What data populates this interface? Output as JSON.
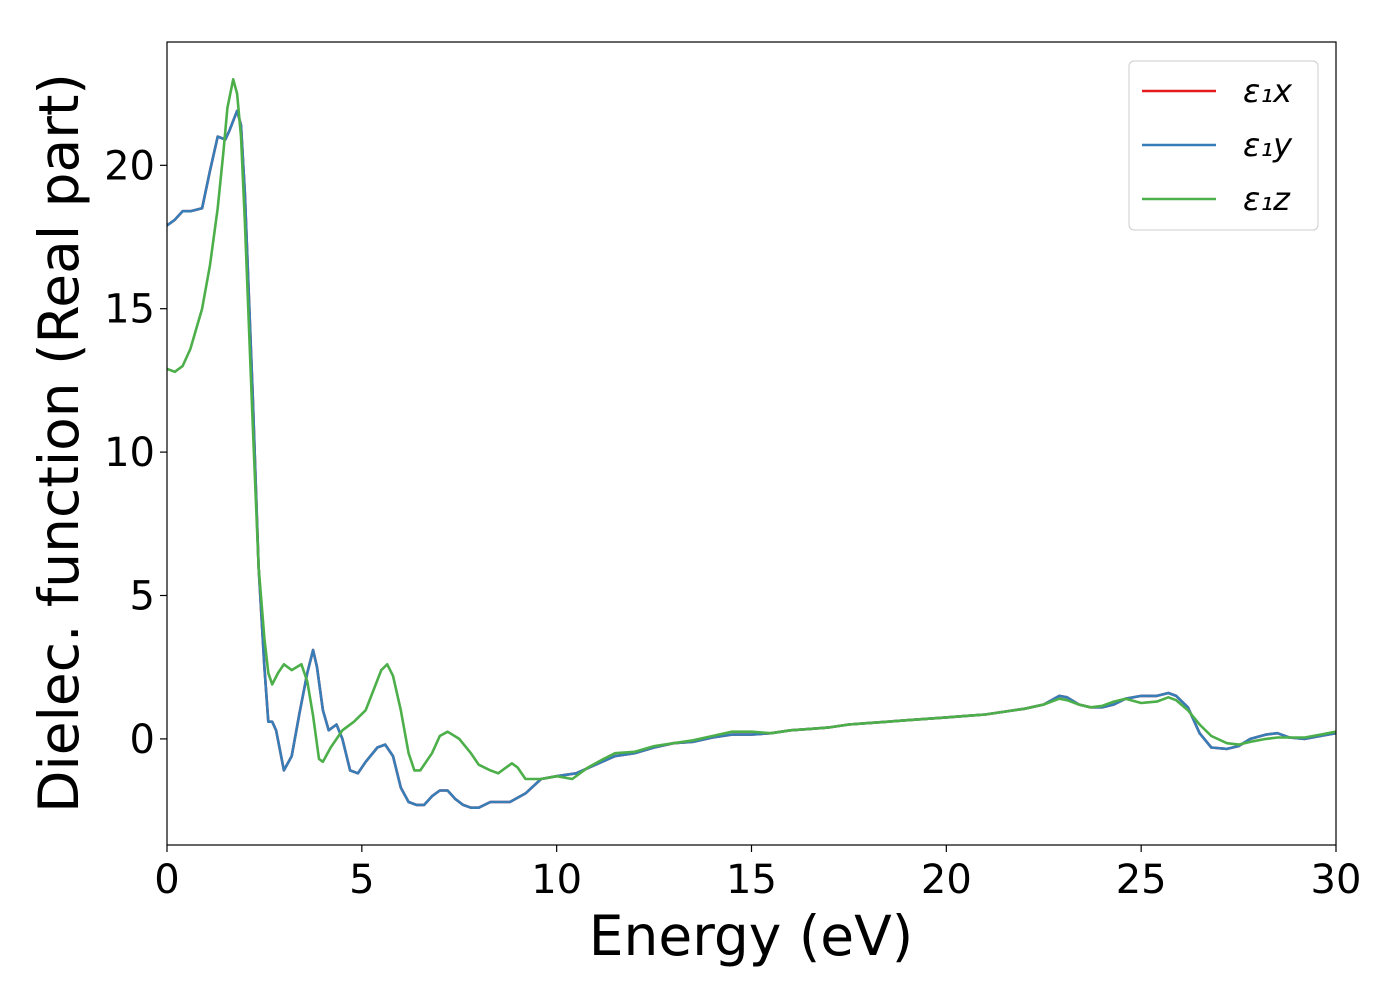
{
  "chart_data": {
    "type": "line",
    "xlabel": "Energy (eV)",
    "ylabel": "Dielec. function (Real part)",
    "xlim": [
      0,
      30
    ],
    "ylim": [
      -3.7,
      24.3
    ],
    "xticks": [
      0,
      5,
      10,
      15,
      20,
      25,
      30
    ],
    "yticks": [
      0,
      5,
      10,
      15,
      20
    ],
    "grid": false,
    "legend_position": "top-right",
    "series": [
      {
        "name": "ε₁x",
        "color": "#e41a1c",
        "points": [
          [
            0,
            17.9
          ],
          [
            0.2,
            18.1
          ],
          [
            0.4,
            18.4
          ],
          [
            0.6,
            18.4
          ],
          [
            0.9,
            18.5
          ],
          [
            1.1,
            19.8
          ],
          [
            1.3,
            21.0
          ],
          [
            1.5,
            20.9
          ],
          [
            1.6,
            21.2
          ],
          [
            1.8,
            21.9
          ],
          [
            1.9,
            21.4
          ],
          [
            2.0,
            19.0
          ],
          [
            2.2,
            12.0
          ],
          [
            2.35,
            6.0
          ],
          [
            2.5,
            2.5
          ],
          [
            2.6,
            0.6
          ],
          [
            2.7,
            0.6
          ],
          [
            2.8,
            0.3
          ],
          [
            3.0,
            -1.1
          ],
          [
            3.2,
            -0.6
          ],
          [
            3.4,
            0.9
          ],
          [
            3.6,
            2.3
          ],
          [
            3.75,
            3.1
          ],
          [
            3.85,
            2.5
          ],
          [
            4.0,
            1.0
          ],
          [
            4.15,
            0.3
          ],
          [
            4.35,
            0.5
          ],
          [
            4.5,
            0.0
          ],
          [
            4.7,
            -1.1
          ],
          [
            4.9,
            -1.2
          ],
          [
            5.1,
            -0.8
          ],
          [
            5.4,
            -0.3
          ],
          [
            5.6,
            -0.2
          ],
          [
            5.8,
            -0.6
          ],
          [
            6.0,
            -1.7
          ],
          [
            6.2,
            -2.2
          ],
          [
            6.4,
            -2.3
          ],
          [
            6.6,
            -2.3
          ],
          [
            6.8,
            -2.0
          ],
          [
            7.0,
            -1.8
          ],
          [
            7.2,
            -1.8
          ],
          [
            7.4,
            -2.1
          ],
          [
            7.6,
            -2.3
          ],
          [
            7.8,
            -2.4
          ],
          [
            8.0,
            -2.4
          ],
          [
            8.3,
            -2.2
          ],
          [
            8.8,
            -2.2
          ],
          [
            9.2,
            -1.9
          ],
          [
            9.6,
            -1.4
          ],
          [
            10.0,
            -1.3
          ],
          [
            10.5,
            -1.2
          ],
          [
            11.0,
            -0.9
          ],
          [
            11.5,
            -0.6
          ],
          [
            12.0,
            -0.5
          ],
          [
            12.5,
            -0.3
          ],
          [
            13.0,
            -0.15
          ],
          [
            13.5,
            -0.1
          ],
          [
            14.0,
            0.05
          ],
          [
            14.5,
            0.15
          ],
          [
            15.0,
            0.15
          ],
          [
            15.5,
            0.2
          ],
          [
            16.0,
            0.3
          ],
          [
            16.5,
            0.35
          ],
          [
            17.0,
            0.4
          ],
          [
            17.5,
            0.5
          ],
          [
            18.0,
            0.55
          ],
          [
            18.5,
            0.6
          ],
          [
            19.0,
            0.65
          ],
          [
            19.5,
            0.7
          ],
          [
            20.0,
            0.75
          ],
          [
            20.5,
            0.8
          ],
          [
            21.0,
            0.85
          ],
          [
            21.5,
            0.95
          ],
          [
            22.0,
            1.05
          ],
          [
            22.5,
            1.2
          ],
          [
            22.9,
            1.5
          ],
          [
            23.1,
            1.45
          ],
          [
            23.4,
            1.2
          ],
          [
            23.7,
            1.1
          ],
          [
            24.0,
            1.1
          ],
          [
            24.3,
            1.2
          ],
          [
            24.6,
            1.4
          ],
          [
            25.0,
            1.5
          ],
          [
            25.4,
            1.5
          ],
          [
            25.7,
            1.6
          ],
          [
            25.9,
            1.5
          ],
          [
            26.2,
            1.1
          ],
          [
            26.5,
            0.2
          ],
          [
            26.8,
            -0.3
          ],
          [
            27.2,
            -0.35
          ],
          [
            27.5,
            -0.25
          ],
          [
            27.8,
            0.0
          ],
          [
            28.2,
            0.15
          ],
          [
            28.5,
            0.2
          ],
          [
            28.8,
            0.05
          ],
          [
            29.2,
            0.0
          ],
          [
            29.6,
            0.1
          ],
          [
            30.0,
            0.2
          ]
        ]
      },
      {
        "name": "ε₁y",
        "color": "#377eb8",
        "points": [
          [
            0,
            17.9
          ],
          [
            0.2,
            18.1
          ],
          [
            0.4,
            18.4
          ],
          [
            0.6,
            18.4
          ],
          [
            0.9,
            18.5
          ],
          [
            1.1,
            19.8
          ],
          [
            1.3,
            21.0
          ],
          [
            1.5,
            20.9
          ],
          [
            1.6,
            21.2
          ],
          [
            1.8,
            21.9
          ],
          [
            1.9,
            21.4
          ],
          [
            2.0,
            19.0
          ],
          [
            2.2,
            12.0
          ],
          [
            2.35,
            6.0
          ],
          [
            2.5,
            2.5
          ],
          [
            2.6,
            0.6
          ],
          [
            2.7,
            0.6
          ],
          [
            2.8,
            0.3
          ],
          [
            3.0,
            -1.1
          ],
          [
            3.2,
            -0.6
          ],
          [
            3.4,
            0.9
          ],
          [
            3.6,
            2.3
          ],
          [
            3.75,
            3.1
          ],
          [
            3.85,
            2.5
          ],
          [
            4.0,
            1.0
          ],
          [
            4.15,
            0.3
          ],
          [
            4.35,
            0.5
          ],
          [
            4.5,
            0.0
          ],
          [
            4.7,
            -1.1
          ],
          [
            4.9,
            -1.2
          ],
          [
            5.1,
            -0.8
          ],
          [
            5.4,
            -0.3
          ],
          [
            5.6,
            -0.2
          ],
          [
            5.8,
            -0.6
          ],
          [
            6.0,
            -1.7
          ],
          [
            6.2,
            -2.2
          ],
          [
            6.4,
            -2.3
          ],
          [
            6.6,
            -2.3
          ],
          [
            6.8,
            -2.0
          ],
          [
            7.0,
            -1.8
          ],
          [
            7.2,
            -1.8
          ],
          [
            7.4,
            -2.1
          ],
          [
            7.6,
            -2.3
          ],
          [
            7.8,
            -2.4
          ],
          [
            8.0,
            -2.4
          ],
          [
            8.3,
            -2.2
          ],
          [
            8.8,
            -2.2
          ],
          [
            9.2,
            -1.9
          ],
          [
            9.6,
            -1.4
          ],
          [
            10.0,
            -1.3
          ],
          [
            10.5,
            -1.2
          ],
          [
            11.0,
            -0.9
          ],
          [
            11.5,
            -0.6
          ],
          [
            12.0,
            -0.5
          ],
          [
            12.5,
            -0.3
          ],
          [
            13.0,
            -0.15
          ],
          [
            13.5,
            -0.1
          ],
          [
            14.0,
            0.05
          ],
          [
            14.5,
            0.15
          ],
          [
            15.0,
            0.15
          ],
          [
            15.5,
            0.2
          ],
          [
            16.0,
            0.3
          ],
          [
            16.5,
            0.35
          ],
          [
            17.0,
            0.4
          ],
          [
            17.5,
            0.5
          ],
          [
            18.0,
            0.55
          ],
          [
            18.5,
            0.6
          ],
          [
            19.0,
            0.65
          ],
          [
            19.5,
            0.7
          ],
          [
            20.0,
            0.75
          ],
          [
            20.5,
            0.8
          ],
          [
            21.0,
            0.85
          ],
          [
            21.5,
            0.95
          ],
          [
            22.0,
            1.05
          ],
          [
            22.5,
            1.2
          ],
          [
            22.9,
            1.5
          ],
          [
            23.1,
            1.45
          ],
          [
            23.4,
            1.2
          ],
          [
            23.7,
            1.1
          ],
          [
            24.0,
            1.1
          ],
          [
            24.3,
            1.2
          ],
          [
            24.6,
            1.4
          ],
          [
            25.0,
            1.5
          ],
          [
            25.4,
            1.5
          ],
          [
            25.7,
            1.6
          ],
          [
            25.9,
            1.5
          ],
          [
            26.2,
            1.1
          ],
          [
            26.5,
            0.2
          ],
          [
            26.8,
            -0.3
          ],
          [
            27.2,
            -0.35
          ],
          [
            27.5,
            -0.25
          ],
          [
            27.8,
            0.0
          ],
          [
            28.2,
            0.15
          ],
          [
            28.5,
            0.2
          ],
          [
            28.8,
            0.05
          ],
          [
            29.2,
            0.0
          ],
          [
            29.6,
            0.1
          ],
          [
            30.0,
            0.2
          ]
        ]
      },
      {
        "name": "ε₁z",
        "color": "#4daf4a",
        "points": [
          [
            0,
            12.9
          ],
          [
            0.2,
            12.8
          ],
          [
            0.4,
            13.0
          ],
          [
            0.6,
            13.6
          ],
          [
            0.9,
            15.0
          ],
          [
            1.1,
            16.5
          ],
          [
            1.3,
            18.5
          ],
          [
            1.45,
            20.5
          ],
          [
            1.55,
            22.0
          ],
          [
            1.7,
            23.0
          ],
          [
            1.8,
            22.5
          ],
          [
            1.9,
            21.0
          ],
          [
            2.0,
            18.0
          ],
          [
            2.2,
            11.0
          ],
          [
            2.35,
            6.0
          ],
          [
            2.5,
            3.5
          ],
          [
            2.6,
            2.3
          ],
          [
            2.7,
            1.9
          ],
          [
            2.85,
            2.3
          ],
          [
            3.0,
            2.6
          ],
          [
            3.2,
            2.4
          ],
          [
            3.45,
            2.6
          ],
          [
            3.6,
            2.0
          ],
          [
            3.75,
            0.8
          ],
          [
            3.9,
            -0.7
          ],
          [
            4.0,
            -0.8
          ],
          [
            4.2,
            -0.3
          ],
          [
            4.5,
            0.3
          ],
          [
            4.8,
            0.6
          ],
          [
            5.1,
            1.0
          ],
          [
            5.3,
            1.7
          ],
          [
            5.5,
            2.4
          ],
          [
            5.65,
            2.6
          ],
          [
            5.8,
            2.2
          ],
          [
            6.0,
            1.0
          ],
          [
            6.2,
            -0.5
          ],
          [
            6.35,
            -1.1
          ],
          [
            6.5,
            -1.1
          ],
          [
            6.8,
            -0.5
          ],
          [
            7.0,
            0.1
          ],
          [
            7.2,
            0.25
          ],
          [
            7.5,
            0.0
          ],
          [
            7.8,
            -0.5
          ],
          [
            8.0,
            -0.9
          ],
          [
            8.3,
            -1.1
          ],
          [
            8.5,
            -1.2
          ],
          [
            8.7,
            -1.0
          ],
          [
            8.85,
            -0.85
          ],
          [
            9.0,
            -1.0
          ],
          [
            9.2,
            -1.4
          ],
          [
            9.6,
            -1.4
          ],
          [
            10.0,
            -1.3
          ],
          [
            10.4,
            -1.4
          ],
          [
            10.8,
            -1.0
          ],
          [
            11.2,
            -0.7
          ],
          [
            11.5,
            -0.5
          ],
          [
            12.0,
            -0.45
          ],
          [
            12.5,
            -0.25
          ],
          [
            13.0,
            -0.15
          ],
          [
            13.5,
            -0.05
          ],
          [
            14.0,
            0.1
          ],
          [
            14.5,
            0.25
          ],
          [
            15.0,
            0.25
          ],
          [
            15.5,
            0.2
          ],
          [
            16.0,
            0.3
          ],
          [
            16.5,
            0.35
          ],
          [
            17.0,
            0.4
          ],
          [
            17.5,
            0.5
          ],
          [
            18.0,
            0.55
          ],
          [
            18.5,
            0.6
          ],
          [
            19.0,
            0.65
          ],
          [
            19.5,
            0.7
          ],
          [
            20.0,
            0.75
          ],
          [
            20.5,
            0.8
          ],
          [
            21.0,
            0.85
          ],
          [
            21.5,
            0.95
          ],
          [
            22.0,
            1.05
          ],
          [
            22.5,
            1.2
          ],
          [
            22.9,
            1.4
          ],
          [
            23.1,
            1.35
          ],
          [
            23.4,
            1.2
          ],
          [
            23.7,
            1.1
          ],
          [
            24.0,
            1.15
          ],
          [
            24.3,
            1.3
          ],
          [
            24.6,
            1.4
          ],
          [
            25.0,
            1.25
          ],
          [
            25.4,
            1.3
          ],
          [
            25.7,
            1.45
          ],
          [
            25.9,
            1.35
          ],
          [
            26.2,
            1.0
          ],
          [
            26.5,
            0.5
          ],
          [
            26.8,
            0.1
          ],
          [
            27.2,
            -0.15
          ],
          [
            27.5,
            -0.2
          ],
          [
            27.8,
            -0.1
          ],
          [
            28.2,
            0.0
          ],
          [
            28.5,
            0.05
          ],
          [
            28.8,
            0.05
          ],
          [
            29.2,
            0.05
          ],
          [
            29.6,
            0.15
          ],
          [
            30.0,
            0.25
          ]
        ]
      }
    ]
  }
}
